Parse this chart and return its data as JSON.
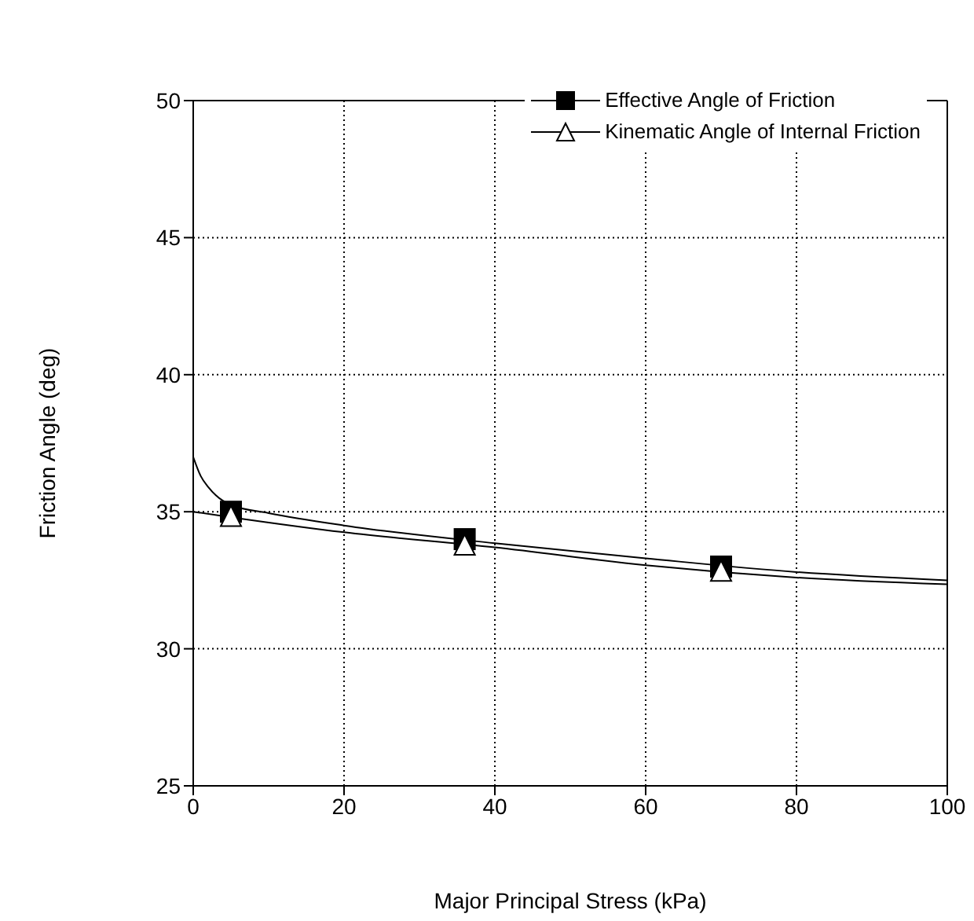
{
  "chart_data": {
    "type": "scatter",
    "xlabel": "Major Principal Stress (kPa)",
    "ylabel": "Friction Angle (deg)",
    "xlim": [
      0,
      100
    ],
    "xticks": [
      0,
      20,
      40,
      60,
      80,
      100
    ],
    "ylim": [
      25,
      50
    ],
    "yticks": [
      25,
      30,
      35,
      40,
      45,
      50
    ],
    "grid": true,
    "legend": "top right",
    "series": [
      {
        "name": "Effective Angle of Friction",
        "marker": "square",
        "color": "#000000",
        "x": [
          5,
          36,
          70
        ],
        "values": [
          35.0,
          34.0,
          33.0
        ]
      },
      {
        "name": "Kinematic Angle of Internal Friction",
        "marker": "triangle",
        "color": "#000000",
        "x": [
          5,
          36,
          70
        ],
        "values": [
          34.85,
          33.8,
          32.85
        ]
      },
      {
        "type": "line",
        "marker": "none",
        "color": "#000000",
        "x": [
          0,
          1,
          2,
          3,
          5,
          10,
          20,
          40,
          60,
          80,
          100
        ],
        "values": [
          37.0,
          36.3,
          35.9,
          35.6,
          35.25,
          34.95,
          34.5,
          33.85,
          33.3,
          32.8,
          32.5
        ]
      },
      {
        "type": "line",
        "marker": "none",
        "color": "#000000",
        "x": [
          0,
          5,
          20,
          40,
          60,
          80,
          100
        ],
        "values": [
          35.0,
          34.8,
          34.25,
          33.7,
          33.05,
          32.6,
          32.35
        ]
      }
    ]
  }
}
